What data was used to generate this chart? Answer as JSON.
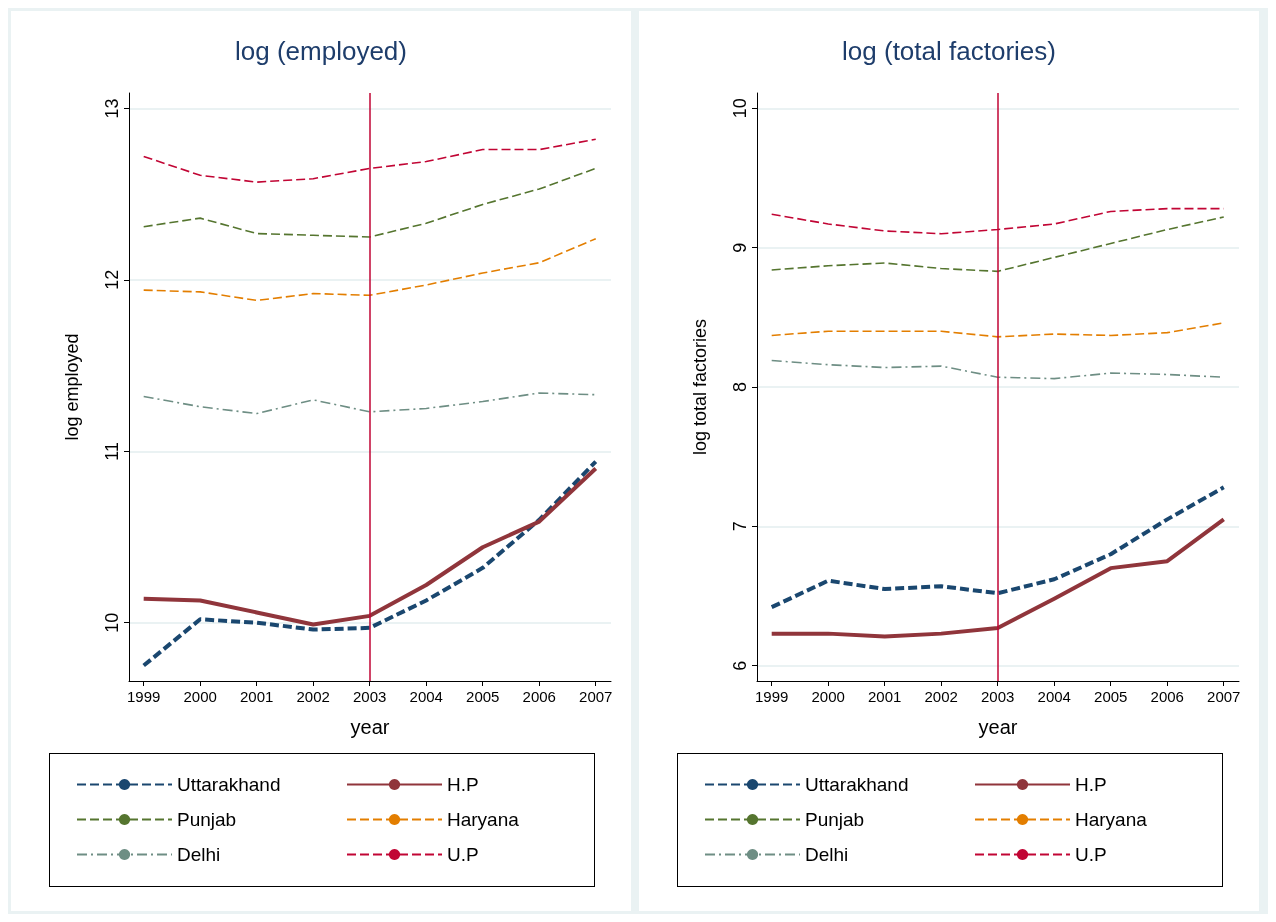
{
  "chart_data": [
    {
      "type": "line",
      "title": "log (employed)",
      "xlabel": "year",
      "ylabel": "log employed",
      "x": [
        1999,
        2000,
        2001,
        2002,
        2003,
        2004,
        2005,
        2006,
        2007
      ],
      "xlim": [
        1998.74,
        2007.27
      ],
      "xticks": [
        1999,
        2000,
        2001,
        2002,
        2003,
        2004,
        2005,
        2006,
        2007
      ],
      "ylim": [
        9.66,
        13.09
      ],
      "yticks": [
        10,
        11,
        12,
        13
      ],
      "grid": "y",
      "legend": "bottom",
      "marker": "none",
      "ref_lines": [
        {
          "axis": "x",
          "value": 2003,
          "color": "#c10534"
        }
      ],
      "series": [
        {
          "name": "Uttarakhand",
          "color": "#1a476f",
          "line_style": "dashed",
          "values": [
            9.75,
            10.02,
            10.0,
            9.96,
            9.97,
            10.13,
            10.32,
            10.6,
            10.94
          ]
        },
        {
          "name": "H.P",
          "color": "#90353b",
          "line_style": "solid",
          "values": [
            10.14,
            10.13,
            10.06,
            9.99,
            10.04,
            10.22,
            10.44,
            10.59,
            10.9
          ]
        },
        {
          "name": "Punjab",
          "color": "#55752f",
          "line_style": "dashed",
          "values": [
            12.31,
            12.36,
            12.27,
            12.26,
            12.25,
            12.33,
            12.44,
            12.53,
            12.65
          ]
        },
        {
          "name": "Haryana",
          "color": "#e37e00",
          "line_style": "dashed",
          "values": [
            11.94,
            11.93,
            11.88,
            11.92,
            11.91,
            11.97,
            12.04,
            12.1,
            12.24
          ]
        },
        {
          "name": "Delhi",
          "color": "#6e8e84",
          "line_style": "dashdot",
          "values": [
            11.32,
            11.26,
            11.22,
            11.3,
            11.23,
            11.25,
            11.29,
            11.34,
            11.33
          ]
        },
        {
          "name": "U.P",
          "color": "#c10534",
          "line_style": "dashed",
          "values": [
            12.72,
            12.61,
            12.57,
            12.59,
            12.65,
            12.69,
            12.76,
            12.76,
            12.82
          ]
        }
      ]
    },
    {
      "type": "line",
      "title": "log (total factories)",
      "xlabel": "year",
      "ylabel": "log total factories",
      "x": [
        1999,
        2000,
        2001,
        2002,
        2003,
        2004,
        2005,
        2006,
        2007
      ],
      "xlim": [
        1998.74,
        2007.27
      ],
      "xticks": [
        1999,
        2000,
        2001,
        2002,
        2003,
        2004,
        2005,
        2006,
        2007
      ],
      "ylim": [
        5.89,
        10.11
      ],
      "yticks": [
        6,
        7,
        8,
        9,
        10
      ],
      "grid": "y",
      "legend": "bottom",
      "marker": "none",
      "ref_lines": [
        {
          "axis": "x",
          "value": 2003,
          "color": "#c10534"
        }
      ],
      "series": [
        {
          "name": "Uttarakhand",
          "color": "#1a476f",
          "line_style": "dashed",
          "values": [
            6.42,
            6.61,
            6.55,
            6.57,
            6.52,
            6.62,
            6.8,
            7.05,
            7.28
          ]
        },
        {
          "name": "H.P",
          "color": "#90353b",
          "line_style": "solid",
          "values": [
            6.23,
            6.23,
            6.21,
            6.23,
            6.27,
            6.48,
            6.7,
            6.75,
            7.05
          ]
        },
        {
          "name": "Punjab",
          "color": "#55752f",
          "line_style": "dashed",
          "values": [
            8.84,
            8.87,
            8.89,
            8.85,
            8.83,
            8.93,
            9.03,
            9.13,
            9.22
          ]
        },
        {
          "name": "Haryana",
          "color": "#e37e00",
          "line_style": "dashed",
          "values": [
            8.37,
            8.4,
            8.4,
            8.4,
            8.36,
            8.38,
            8.37,
            8.39,
            8.46
          ]
        },
        {
          "name": "Delhi",
          "color": "#6e8e84",
          "line_style": "dashdot",
          "values": [
            8.19,
            8.16,
            8.14,
            8.15,
            8.07,
            8.06,
            8.1,
            8.09,
            8.07
          ]
        },
        {
          "name": "U.P",
          "color": "#c10534",
          "line_style": "dashed",
          "values": [
            9.24,
            9.17,
            9.12,
            9.1,
            9.13,
            9.17,
            9.26,
            9.28,
            9.28
          ]
        }
      ]
    }
  ]
}
